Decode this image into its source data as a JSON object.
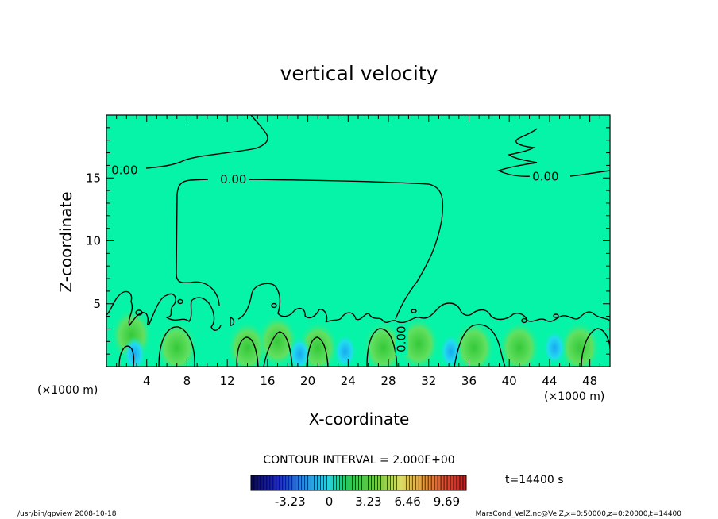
{
  "chart_data": {
    "type": "heatmap",
    "title": "vertical velocity",
    "xlabel": "X-coordinate",
    "ylabel": "Z-coordinate",
    "x_unit_left": "(×1000 m)",
    "x_unit_right": "(×1000 m)",
    "xlim": [
      0,
      50
    ],
    "ylim": [
      0,
      20
    ],
    "x_ticks": [
      4,
      8,
      12,
      16,
      20,
      24,
      28,
      32,
      36,
      40,
      44,
      48
    ],
    "y_ticks": [
      5,
      10,
      15
    ],
    "contour_interval_text": "CONTOUR INTERVAL = 2.000E+00",
    "contour_labels": [
      {
        "x": 1.8,
        "y": 15.6,
        "text": "0.00"
      },
      {
        "x": 12.6,
        "y": 14.9,
        "text": "0.00"
      },
      {
        "x": 43.6,
        "y": 15.1,
        "text": "0.00"
      },
      {
        "x": 29.3,
        "y": 2.2,
        "text": "0.00"
      }
    ],
    "colorbar": {
      "tick_labels": [
        "-3.23",
        "0",
        "3.23",
        "6.46",
        "9.69"
      ],
      "tick_values": [
        -3.23,
        0,
        3.23,
        6.46,
        9.69
      ],
      "range": [
        -6.46,
        11.3
      ]
    },
    "time_label": "t=14400 s",
    "colors": {
      "background": "#06f4a8",
      "positive_strong": "#2ecc3e",
      "positive_weak": "#6ee86a",
      "negative": "#16d8f0"
    }
  },
  "footer": {
    "left": "/usr/bin/gpview  2008-10-18",
    "right": "MarsCond_VelZ.nc@VelZ,x=0:50000,z=0:20000,t=14400"
  }
}
